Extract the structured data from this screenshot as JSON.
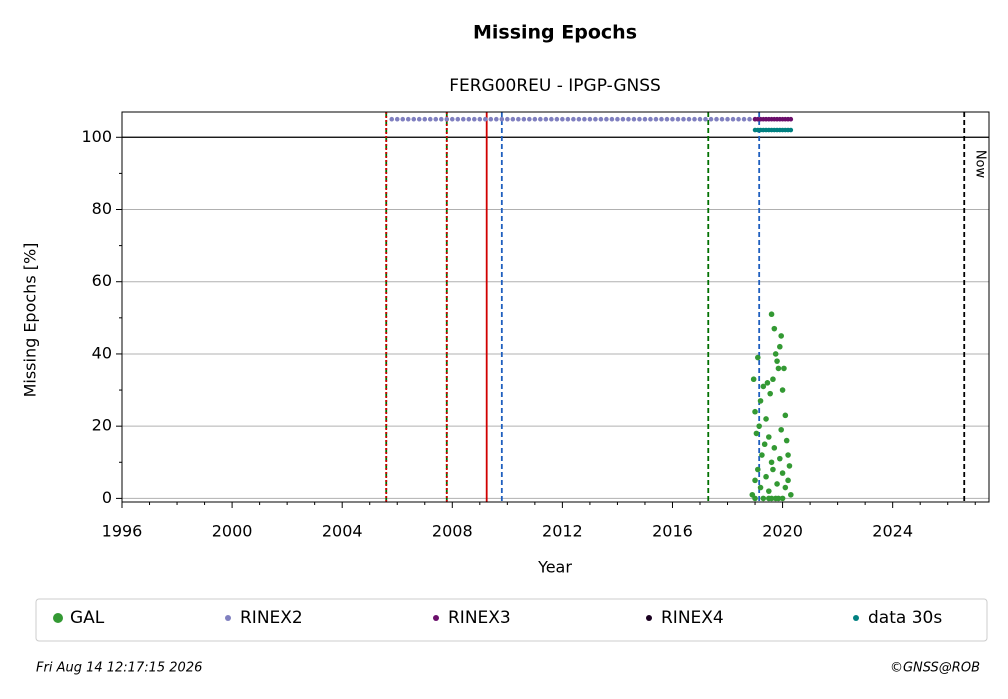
{
  "chart_data": {
    "type": "scatter",
    "title": "Missing Epochs",
    "subtitle": "FERG00REU - IPGP-GNSS",
    "xlabel": "Year",
    "ylabel": "Missing Epochs [%]",
    "xlim": [
      1996,
      2027.5
    ],
    "ylim": [
      -1,
      107
    ],
    "xticks": [
      1996,
      2000,
      2004,
      2008,
      2012,
      2016,
      2020,
      2024
    ],
    "xminorticks": [
      1997,
      1998,
      1999,
      2001,
      2002,
      2003,
      2005,
      2006,
      2007,
      2009,
      2010,
      2011,
      2013,
      2014,
      2015,
      2017,
      2018,
      2019,
      2021,
      2022,
      2023,
      2025,
      2026,
      2027
    ],
    "yticks": [
      0,
      20,
      40,
      60,
      80,
      100
    ],
    "yminorticks": [
      10,
      30,
      50,
      70,
      90
    ],
    "grid": true,
    "hlines": [
      {
        "y": 100,
        "color": "#000000"
      }
    ],
    "vlines": [
      {
        "x": 2005.6,
        "color": "#007000",
        "style": "dashed"
      },
      {
        "x": 2005.6,
        "color": "#d00000",
        "style": "dotted"
      },
      {
        "x": 2007.8,
        "color": "#007000",
        "style": "dashed"
      },
      {
        "x": 2007.8,
        "color": "#d00000",
        "style": "dotted"
      },
      {
        "x": 2009.25,
        "color": "#d00000",
        "style": "solid"
      },
      {
        "x": 2009.8,
        "color": "#1f5fbf",
        "style": "dashed"
      },
      {
        "x": 2017.3,
        "color": "#007000",
        "style": "dashed"
      },
      {
        "x": 2019.15,
        "color": "#1f5fbf",
        "style": "dashed"
      },
      {
        "x": 2026.6,
        "color": "#000000",
        "style": "dashed",
        "label": "Now"
      }
    ],
    "series": [
      {
        "name": "GAL",
        "color": "#339933",
        "size": 2.8,
        "x": [
          2018.9,
          2018.95,
          2019.0,
          2019.0,
          2019.05,
          2019.1,
          2019.1,
          2019.15,
          2019.2,
          2019.2,
          2019.25,
          2019.3,
          2019.35,
          2019.4,
          2019.4,
          2019.45,
          2019.5,
          2019.5,
          2019.55,
          2019.6,
          2019.6,
          2019.65,
          2019.7,
          2019.7,
          2019.75,
          2019.8,
          2019.8,
          2019.85,
          2019.9,
          2019.9,
          2019.95,
          2020.0,
          2020.0,
          2020.05,
          2020.1,
          2020.1,
          2020.15,
          2020.2,
          2020.2,
          2020.25,
          2020.3,
          2019.3,
          2019.6,
          2019.75,
          2019.85,
          2019.0,
          2019.5,
          2020.0,
          2019.65,
          2019.95
        ],
        "values": [
          1,
          33,
          24,
          5,
          18,
          39,
          8,
          20,
          27,
          3,
          12,
          31,
          15,
          22,
          6,
          32,
          17,
          2,
          29,
          51,
          10,
          33,
          47,
          14,
          40,
          38,
          4,
          36,
          42,
          11,
          19,
          30,
          7,
          36,
          23,
          3,
          16,
          12,
          5,
          9,
          1,
          0,
          0,
          0,
          0,
          0,
          0,
          0,
          8,
          45
        ]
      },
      {
        "name": "RINEX2",
        "color": "#8080c0",
        "size": 2.3,
        "x": [
          2005.8,
          2006,
          2006.2,
          2006.4,
          2006.6,
          2006.8,
          2007,
          2007.2,
          2007.4,
          2007.6,
          2007.8,
          2008,
          2008.2,
          2008.4,
          2008.6,
          2008.8,
          2009,
          2009.2,
          2009.4,
          2009.6,
          2009.8,
          2010,
          2010.2,
          2010.4,
          2010.6,
          2010.8,
          2011,
          2011.2,
          2011.4,
          2011.6,
          2011.8,
          2012,
          2012.2,
          2012.4,
          2012.6,
          2012.8,
          2013,
          2013.2,
          2013.4,
          2013.6,
          2013.8,
          2014,
          2014.2,
          2014.4,
          2014.6,
          2014.8,
          2015,
          2015.2,
          2015.4,
          2015.6,
          2015.8,
          2016,
          2016.2,
          2016.4,
          2016.6,
          2016.8,
          2017,
          2017.2,
          2017.4,
          2017.6,
          2017.8,
          2018,
          2018.2,
          2018.4,
          2018.6,
          2018.8,
          2019
        ],
        "values": [
          105,
          105,
          105,
          105,
          105,
          105,
          105,
          105,
          105,
          105,
          105,
          105,
          105,
          105,
          105,
          105,
          105,
          105,
          105,
          105,
          105,
          105,
          105,
          105,
          105,
          105,
          105,
          105,
          105,
          105,
          105,
          105,
          105,
          105,
          105,
          105,
          105,
          105,
          105,
          105,
          105,
          105,
          105,
          105,
          105,
          105,
          105,
          105,
          105,
          105,
          105,
          105,
          105,
          105,
          105,
          105,
          105,
          105,
          105,
          105,
          105,
          105,
          105,
          105,
          105,
          105,
          105
        ]
      },
      {
        "name": "RINEX3",
        "color": "#6b0f6b",
        "size": 2.3,
        "x": [
          2019.0,
          2019.1,
          2019.2,
          2019.3,
          2019.4,
          2019.5,
          2019.6,
          2019.7,
          2019.8,
          2019.9,
          2020.0,
          2020.1,
          2020.2,
          2020.3
        ],
        "values": [
          105,
          105,
          105,
          105,
          105,
          105,
          105,
          105,
          105,
          105,
          105,
          105,
          105,
          105
        ]
      },
      {
        "name": "RINEX4",
        "color": "#1a0020",
        "size": 2.3,
        "x": [],
        "values": []
      },
      {
        "name": "data 30s",
        "color": "#008080",
        "size": 2.3,
        "x": [
          2019.0,
          2019.1,
          2019.2,
          2019.3,
          2019.4,
          2019.5,
          2019.6,
          2019.7,
          2019.8,
          2019.9,
          2020.0,
          2020.1,
          2020.2,
          2020.3
        ],
        "values": [
          102,
          102,
          102,
          102,
          102,
          102,
          102,
          102,
          102,
          102,
          102,
          102,
          102,
          102
        ]
      }
    ],
    "footer_left": "Fri Aug 14 12:17:15 2026",
    "footer_right": "©GNSS@ROB"
  }
}
